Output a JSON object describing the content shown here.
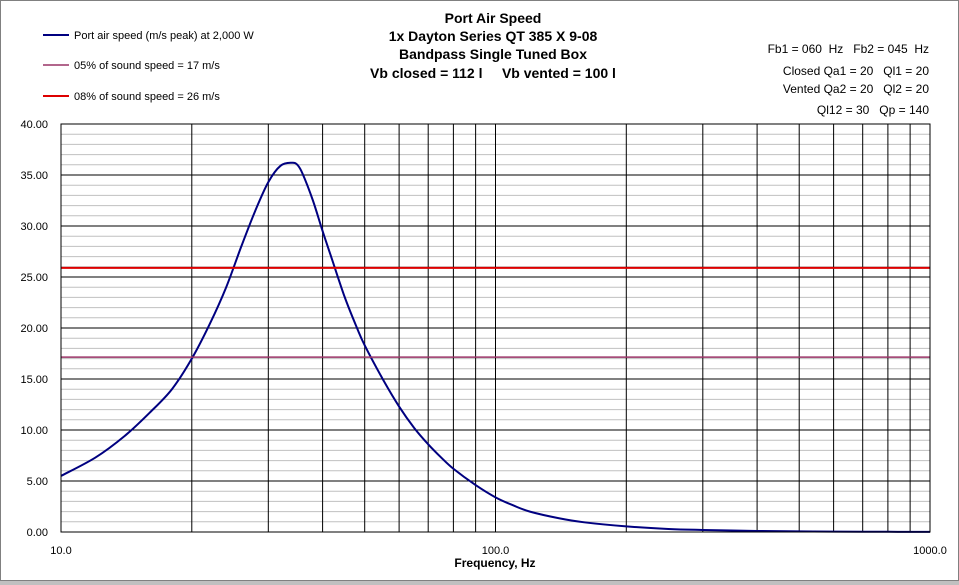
{
  "chart_data": {
    "type": "line",
    "title_lines": [
      "Port Air Speed",
      "1x Dayton Series QT 385 X 9-08",
      "Bandpass Single Tuned Box",
      "Vb closed = 112 l     Vb vented = 100 l"
    ],
    "xlabel": "Frequency, Hz",
    "ylabel": "",
    "x_scale": "log",
    "xlim": [
      10,
      1000
    ],
    "ylim": [
      0,
      40
    ],
    "x_tick_labels": [
      "10.0",
      "100.0",
      "1000.0"
    ],
    "x_tick_values": [
      10,
      100,
      1000
    ],
    "y_tick_labels": [
      "0.00",
      "5.00",
      "10.00",
      "15.00",
      "20.00",
      "25.00",
      "30.00",
      "35.00",
      "40.00"
    ],
    "y_tick_values": [
      0,
      5,
      10,
      15,
      20,
      25,
      30,
      35,
      40
    ],
    "grid": true,
    "legend_position": "top-left",
    "series": [
      {
        "name": "Port air speed (m/s peak) at 2,000 W",
        "color": "#000080",
        "x": [
          10,
          12,
          14,
          16,
          18,
          20,
          22,
          24,
          26,
          28,
          30,
          32,
          34,
          35,
          36,
          38,
          40,
          42,
          45,
          48,
          50,
          55,
          60,
          65,
          70,
          75,
          80,
          90,
          100,
          110,
          120,
          140,
          160,
          200,
          250,
          300,
          400,
          500,
          600,
          800,
          1000
        ],
        "y": [
          5.5,
          7.3,
          9.4,
          11.7,
          14.0,
          17.0,
          20.4,
          24.0,
          28.0,
          31.5,
          34.3,
          35.9,
          36.2,
          36.0,
          35.1,
          32.5,
          29.5,
          26.8,
          23.0,
          20.0,
          18.3,
          15.0,
          12.3,
          10.2,
          8.6,
          7.3,
          6.2,
          4.6,
          3.4,
          2.6,
          2.0,
          1.35,
          0.95,
          0.55,
          0.3,
          0.2,
          0.1,
          0.06,
          0.04,
          0.02,
          0.01
        ]
      },
      {
        "name": "05% of sound speed = 17 m/s",
        "color": "#993366",
        "x": [
          10,
          1000
        ],
        "y": [
          17.15,
          17.15
        ]
      },
      {
        "name": "08% of sound speed = 26 m/s",
        "color": "#dd0000",
        "x": [
          10,
          1000
        ],
        "y": [
          25.9,
          25.9
        ]
      }
    ],
    "annotations": [
      "Fb1 = 060  Hz   Fb2 = 045  Hz",
      "Closed Qa1 = 20   Ql1 = 20",
      "Vented Qa2 = 20   Ql2 = 20",
      "Ql12 = 30   Qp = 140"
    ]
  }
}
